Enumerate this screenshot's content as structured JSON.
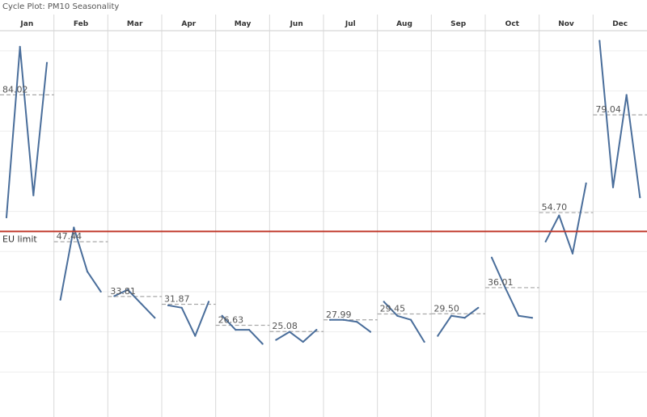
{
  "chart_data": {
    "type": "line",
    "title": "Cycle Plot: PM10 Seasonality",
    "xlabel": "",
    "ylabel": "",
    "ylim": [
      5,
      100
    ],
    "grid": "vertical month dividers and faint horizontal lines",
    "categories": [
      "Jan",
      "Feb",
      "Mar",
      "Apr",
      "May",
      "Jun",
      "Jul",
      "Aug",
      "Sep",
      "Oct",
      "Nov",
      "Dec"
    ],
    "panels": [
      {
        "month": "Jan",
        "values": [
          53.5,
          96.0,
          59.0,
          92.0
        ],
        "average": 84.02,
        "average_label": "84.02"
      },
      {
        "month": "Feb",
        "values": [
          33.0,
          51.0,
          40.0,
          35.0
        ],
        "average": 47.44,
        "average_label": "47.44"
      },
      {
        "month": "Mar",
        "values": [
          33.9,
          35.5,
          32.0,
          28.5
        ],
        "average": 33.81,
        "average_label": "33.81"
      },
      {
        "month": "Apr",
        "values": [
          31.6,
          31.0,
          24.0,
          32.5
        ],
        "average": 31.87,
        "average_label": "31.87"
      },
      {
        "month": "May",
        "values": [
          29.0,
          25.5,
          25.5,
          22.0
        ],
        "average": 26.63,
        "average_label": "26.63"
      },
      {
        "month": "Jun",
        "values": [
          23.0,
          25.0,
          22.5,
          25.5
        ],
        "average": 25.08,
        "average_label": "25.08"
      },
      {
        "month": "Jul",
        "values": [
          28.0,
          28.0,
          27.5,
          25.0
        ],
        "average": 27.99,
        "average_label": "27.99"
      },
      {
        "month": "Aug",
        "values": [
          32.5,
          29.0,
          28.0,
          22.5
        ],
        "average": 29.45,
        "average_label": "29.45"
      },
      {
        "month": "Sep",
        "values": [
          24.0,
          29.0,
          28.5,
          31.0
        ],
        "average": 29.5,
        "average_label": "29.50"
      },
      {
        "month": "Oct",
        "values": [
          43.5,
          36.0,
          29.0,
          28.5
        ],
        "average": 36.01,
        "average_label": "36.01"
      },
      {
        "month": "Nov",
        "values": [
          47.5,
          54.0,
          44.5,
          62.0
        ],
        "average": 54.7,
        "average_label": "54.70"
      },
      {
        "month": "Dec",
        "values": [
          97.5,
          61.0,
          84.0,
          58.5
        ],
        "average": 79.04,
        "average_label": "79.04"
      }
    ],
    "reference_line": {
      "label": "EU limit",
      "value": 50,
      "color": "#c0392b"
    },
    "colors": {
      "line": "#4a6e9b",
      "average": "#a8a8a8",
      "divider": "#d9d9d9",
      "gridline": "#eeeeee"
    }
  }
}
